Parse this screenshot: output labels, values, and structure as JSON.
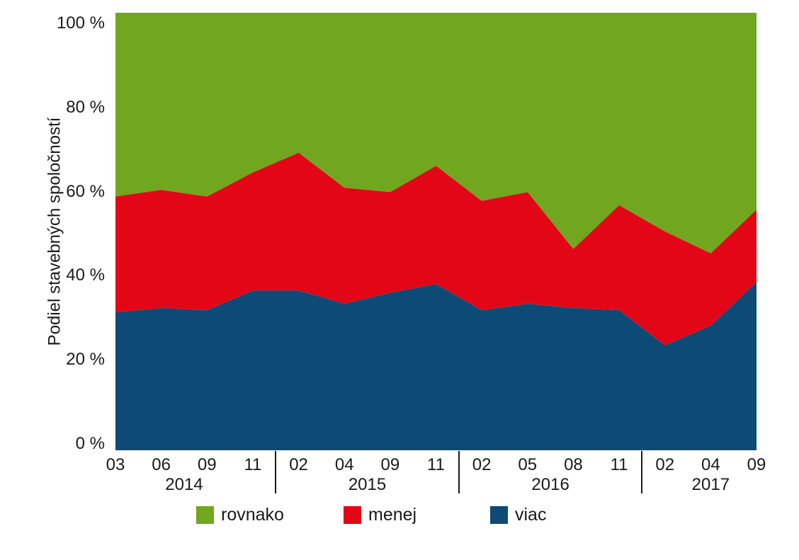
{
  "chart_data": {
    "type": "area",
    "stacked": true,
    "title": "",
    "ylabel": "Podiel stavebných spoločností",
    "xlabel": "",
    "ylim": [
      0,
      100
    ],
    "grid": false,
    "y_ticks": [
      "100 %",
      "80 %",
      "60 %",
      "40 %",
      "20 %",
      "0 %"
    ],
    "x_labels": [
      "03",
      "06",
      "09",
      "11",
      "02",
      "04",
      "09",
      "11",
      "02",
      "05",
      "08",
      "11",
      "02",
      "04",
      "09"
    ],
    "year_groups": [
      {
        "label": "2014",
        "count": 4
      },
      {
        "label": "2015",
        "count": 4
      },
      {
        "label": "2016",
        "count": 4
      },
      {
        "label": "2017",
        "count": 3
      }
    ],
    "series": [
      {
        "name": "viac",
        "color": "#0d4a76",
        "values": [
          31.5,
          32.5,
          32.0,
          36.5,
          36.5,
          33.5,
          36.0,
          38.0,
          32.0,
          33.5,
          32.5,
          32.0,
          24.0,
          28.5,
          38.5
        ]
      },
      {
        "name": "menej",
        "color": "#e30617",
        "values": [
          26.5,
          27.0,
          26.0,
          27.0,
          31.5,
          26.5,
          23.0,
          27.0,
          25.0,
          25.5,
          13.5,
          24.0,
          26.0,
          16.5,
          16.5
        ]
      },
      {
        "name": "rovnako",
        "color": "#71a61f",
        "values": [
          42.0,
          40.5,
          42.0,
          36.5,
          32.0,
          40.0,
          41.0,
          35.0,
          43.0,
          41.0,
          54.0,
          44.0,
          50.0,
          55.0,
          45.0
        ]
      }
    ],
    "legend": [
      "rovnako",
      "menej",
      "viac"
    ],
    "legend_position": "bottom"
  }
}
